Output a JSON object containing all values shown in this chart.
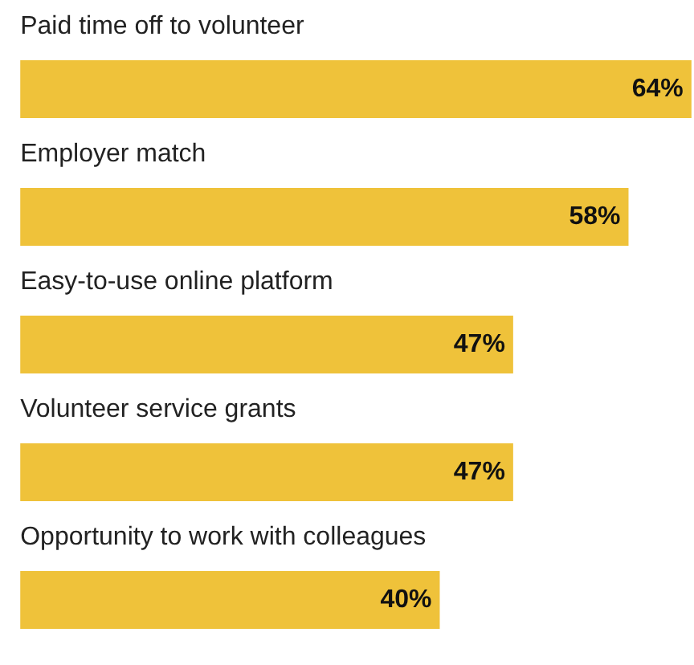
{
  "chart_data": {
    "type": "bar",
    "orientation": "horizontal",
    "categories": [
      "Paid time off to volunteer",
      "Employer match",
      "Easy-to-use online platform",
      "Volunteer service grants",
      "Opportunity to work with colleagues"
    ],
    "values": [
      64,
      58,
      47,
      47,
      40
    ],
    "value_labels": [
      "64%",
      "58%",
      "47%",
      "47%",
      "40%"
    ],
    "color": "#efc23a"
  }
}
